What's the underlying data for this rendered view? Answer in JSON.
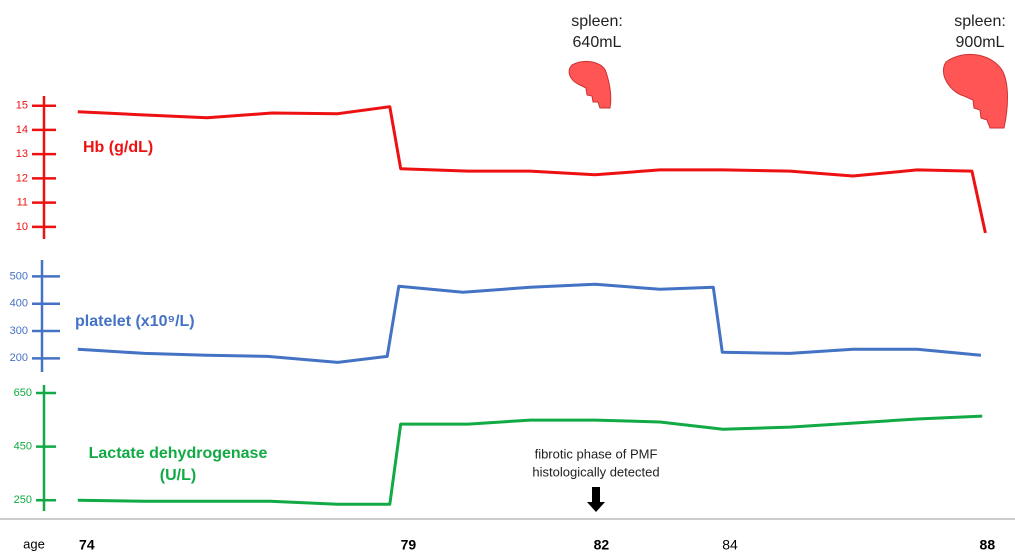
{
  "chart_data": {
    "type": "line",
    "xlabel": "age",
    "xlim": [
      72.65,
      88.43
    ],
    "xticks": [
      74,
      79,
      82,
      84,
      88
    ],
    "xtick_bold": [
      true,
      true,
      true,
      false,
      true
    ],
    "series": [
      {
        "name": [
          "Hb  (g/dL)"
        ],
        "color": "#ee1111",
        "x": [
          73.86,
          74.82,
          75.87,
          76.88,
          77.9,
          78.71,
          78.88,
          79.93,
          80.89,
          81.9,
          82.91,
          83.89,
          84.93,
          85.91,
          86.91,
          87.76,
          87.97
        ],
        "values": [
          14.75,
          14.63,
          14.5,
          14.7,
          14.67,
          14.96,
          12.4,
          12.3,
          12.3,
          12.15,
          12.35,
          12.35,
          12.3,
          12.1,
          12.35,
          12.3,
          9.75
        ],
        "ylim": [
          9.5,
          15.4
        ],
        "yticks": [
          10,
          11,
          12,
          13,
          14,
          15
        ]
      },
      {
        "name": [
          "platelet  (x10⁹/L)"
        ],
        "color": "#4472c4",
        "x": [
          73.86,
          74.9,
          75.87,
          76.81,
          77.9,
          78.67,
          78.85,
          79.85,
          80.89,
          81.9,
          82.91,
          83.74,
          83.88,
          84.93,
          85.91,
          86.91,
          87.9
        ],
        "values": [
          233,
          218,
          211,
          207,
          185,
          207,
          464,
          442,
          460,
          471,
          453,
          460,
          222,
          218,
          233,
          233,
          211
        ],
        "ylim": [
          150,
          560
        ],
        "yticks": [
          200,
          300,
          400,
          500
        ]
      },
      {
        "name": [
          "Lactate dehydrogenase",
          "(U/L)"
        ],
        "color": "#11aa44",
        "x": [
          73.86,
          74.9,
          75.87,
          76.85,
          77.9,
          78.71,
          78.88,
          79.93,
          80.89,
          81.9,
          82.91,
          83.89,
          84.93,
          85.91,
          86.91,
          87.92
        ],
        "values": [
          250,
          246,
          246,
          246,
          235,
          235,
          534,
          534,
          549,
          549,
          542,
          515,
          523,
          538,
          553,
          564
        ],
        "ylim": [
          210,
          680
        ],
        "yticks": [
          250,
          450,
          650
        ]
      }
    ],
    "annotations": [
      [
        "spleen:",
        "640mL"
      ],
      [
        "spleen:",
        "900mL"
      ],
      [
        "fibrotic phase of PMF",
        "histologically detected"
      ]
    ]
  }
}
